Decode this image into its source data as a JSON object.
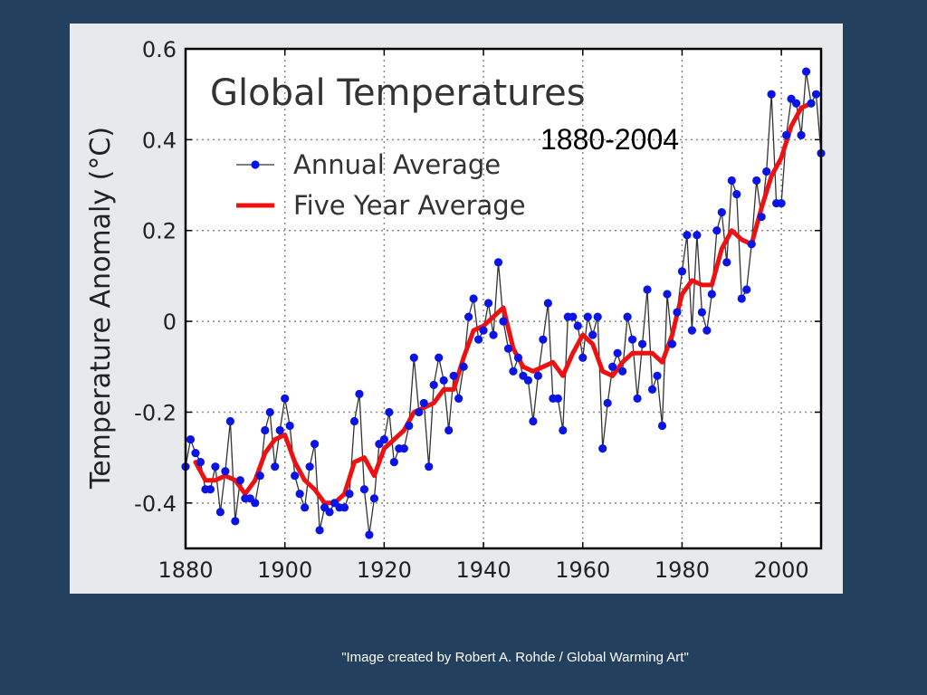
{
  "colors": {
    "background": "#24405f",
    "figure_panel": "#e8e9ec",
    "plot_area": "#ffffff",
    "annual_series": "#0a14e6",
    "annual_line": "#333333",
    "five_year_series": "#ee1111",
    "grid": "#888888",
    "text": "#222222"
  },
  "slide": {
    "subtitle": "1880-2004",
    "credit": "\"Image created by Robert A. Rohde / Global Warming Art\""
  },
  "chart_data": {
    "type": "line",
    "title": "Global Temperatures",
    "xlabel": "",
    "ylabel": "Temperature Anomaly (°C)",
    "xlim": [
      1880,
      2008
    ],
    "ylim": [
      -0.5,
      0.6
    ],
    "xticks": [
      1880,
      1900,
      1920,
      1940,
      1960,
      1980,
      2000
    ],
    "yticks": [
      0.6,
      0.4,
      0.2,
      0,
      -0.2,
      -0.4
    ],
    "ytick_labels": [
      "0.6",
      "0.4",
      "0.2",
      "0",
      "-0.2",
      "-0.4"
    ],
    "grid": true,
    "legend_placement": "top-left",
    "series": [
      {
        "name": "Annual Average",
        "style": "line-with-markers",
        "x": [
          1880,
          1881,
          1882,
          1883,
          1884,
          1885,
          1886,
          1887,
          1888,
          1889,
          1890,
          1891,
          1892,
          1893,
          1894,
          1895,
          1896,
          1897,
          1898,
          1899,
          1900,
          1901,
          1902,
          1903,
          1904,
          1905,
          1906,
          1907,
          1908,
          1909,
          1910,
          1911,
          1912,
          1913,
          1914,
          1915,
          1916,
          1917,
          1918,
          1919,
          1920,
          1921,
          1922,
          1923,
          1924,
          1925,
          1926,
          1927,
          1928,
          1929,
          1930,
          1931,
          1932,
          1933,
          1934,
          1935,
          1936,
          1937,
          1938,
          1939,
          1940,
          1941,
          1942,
          1943,
          1944,
          1945,
          1946,
          1947,
          1948,
          1949,
          1950,
          1951,
          1952,
          1953,
          1954,
          1955,
          1956,
          1957,
          1958,
          1959,
          1960,
          1961,
          1962,
          1963,
          1964,
          1965,
          1966,
          1967,
          1968,
          1969,
          1970,
          1971,
          1972,
          1973,
          1974,
          1975,
          1976,
          1977,
          1978,
          1979,
          1980,
          1981,
          1982,
          1983,
          1984,
          1985,
          1986,
          1987,
          1988,
          1989,
          1990,
          1991,
          1992,
          1993,
          1994,
          1995,
          1996,
          1997,
          1998,
          1999,
          2000,
          2001,
          2002,
          2003,
          2004,
          2005,
          2006,
          2007,
          2008
        ],
        "y": [
          -0.32,
          -0.26,
          -0.29,
          -0.31,
          -0.37,
          -0.37,
          -0.32,
          -0.42,
          -0.33,
          -0.22,
          -0.44,
          -0.35,
          -0.39,
          -0.39,
          -0.4,
          -0.34,
          -0.24,
          -0.2,
          -0.32,
          -0.24,
          -0.17,
          -0.23,
          -0.34,
          -0.38,
          -0.41,
          -0.32,
          -0.27,
          -0.46,
          -0.41,
          -0.42,
          -0.4,
          -0.41,
          -0.41,
          -0.38,
          -0.22,
          -0.16,
          -0.37,
          -0.47,
          -0.39,
          -0.27,
          -0.26,
          -0.2,
          -0.31,
          -0.28,
          -0.28,
          -0.23,
          -0.08,
          -0.2,
          -0.18,
          -0.32,
          -0.14,
          -0.08,
          -0.13,
          -0.24,
          -0.12,
          -0.17,
          -0.1,
          0.01,
          0.05,
          -0.04,
          -0.02,
          0.04,
          -0.03,
          0.13,
          0.0,
          -0.06,
          -0.11,
          -0.08,
          -0.12,
          -0.13,
          -0.22,
          -0.12,
          -0.04,
          0.04,
          -0.17,
          -0.17,
          -0.24,
          0.01,
          0.01,
          -0.01,
          -0.08,
          0.01,
          -0.03,
          0.01,
          -0.28,
          -0.18,
          -0.1,
          -0.07,
          -0.11,
          0.01,
          -0.04,
          -0.17,
          -0.05,
          0.07,
          -0.15,
          -0.12,
          -0.23,
          0.06,
          -0.05,
          0.02,
          0.11,
          0.19,
          -0.02,
          0.19,
          0.02,
          -0.02,
          0.06,
          0.2,
          0.24,
          0.13,
          0.31,
          0.28,
          0.05,
          0.07,
          0.17,
          0.31,
          0.23,
          0.33,
          0.5,
          0.26,
          0.26,
          0.41,
          0.49,
          0.48,
          0.41,
          0.55,
          0.48,
          0.5,
          0.37
        ]
      },
      {
        "name": "Five Year Average",
        "style": "thick-line",
        "x": [
          1882,
          1884,
          1886,
          1888,
          1890,
          1892,
          1894,
          1896,
          1898,
          1900,
          1902,
          1904,
          1906,
          1908,
          1910,
          1912,
          1914,
          1916,
          1918,
          1920,
          1922,
          1924,
          1926,
          1928,
          1930,
          1932,
          1934,
          1936,
          1938,
          1940,
          1942,
          1944,
          1946,
          1948,
          1950,
          1952,
          1954,
          1956,
          1958,
          1960,
          1962,
          1964,
          1966,
          1968,
          1970,
          1972,
          1974,
          1976,
          1978,
          1980,
          1982,
          1984,
          1986,
          1988,
          1990,
          1992,
          1994,
          1996,
          1998,
          2000,
          2002,
          2004,
          2006
        ],
        "y": [
          -0.31,
          -0.35,
          -0.35,
          -0.34,
          -0.35,
          -0.38,
          -0.35,
          -0.29,
          -0.26,
          -0.25,
          -0.31,
          -0.35,
          -0.37,
          -0.4,
          -0.4,
          -0.38,
          -0.31,
          -0.3,
          -0.34,
          -0.28,
          -0.26,
          -0.24,
          -0.2,
          -0.19,
          -0.18,
          -0.15,
          -0.15,
          -0.08,
          -0.02,
          -0.01,
          0.01,
          0.03,
          -0.06,
          -0.1,
          -0.11,
          -0.1,
          -0.09,
          -0.12,
          -0.07,
          -0.03,
          -0.05,
          -0.11,
          -0.12,
          -0.09,
          -0.07,
          -0.07,
          -0.07,
          -0.09,
          -0.03,
          0.06,
          0.09,
          0.08,
          0.08,
          0.16,
          0.2,
          0.18,
          0.17,
          0.25,
          0.32,
          0.36,
          0.43,
          0.47,
          0.48
        ]
      }
    ]
  }
}
